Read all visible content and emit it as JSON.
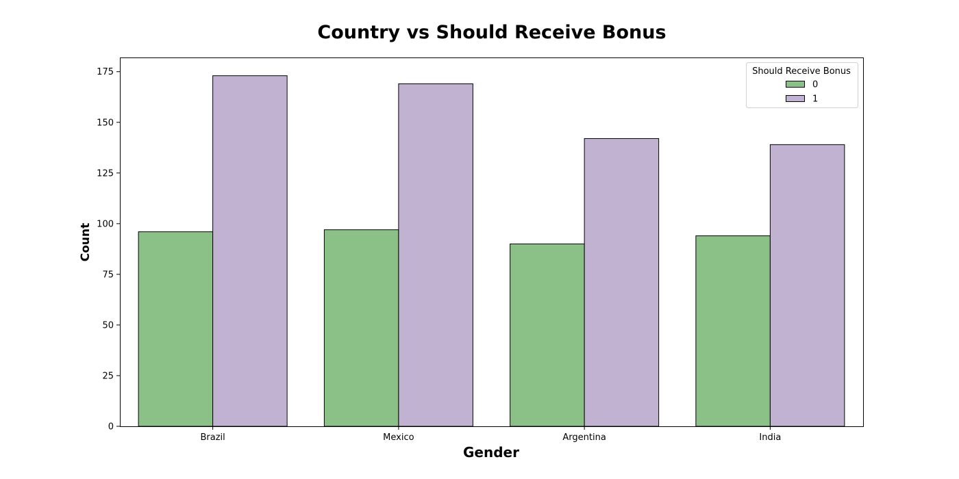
{
  "chart_data": {
    "type": "bar",
    "title": "Country vs Should Receive Bonus",
    "xlabel": "Gender",
    "ylabel": "Count",
    "categories": [
      "Brazil",
      "Mexico",
      "Argentina",
      "India"
    ],
    "series": [
      {
        "name": "0",
        "values": [
          96,
          97,
          90,
          94
        ],
        "color": "#8bc087"
      },
      {
        "name": "1",
        "values": [
          173,
          169,
          142,
          139
        ],
        "color": "#c1b2d1"
      }
    ],
    "ylim": [
      0,
      182
    ],
    "yticks": [
      0,
      25,
      50,
      75,
      100,
      125,
      150,
      175
    ],
    "legend": {
      "title": "Should Receive Bonus",
      "placement": "top-right"
    },
    "grid": false
  }
}
